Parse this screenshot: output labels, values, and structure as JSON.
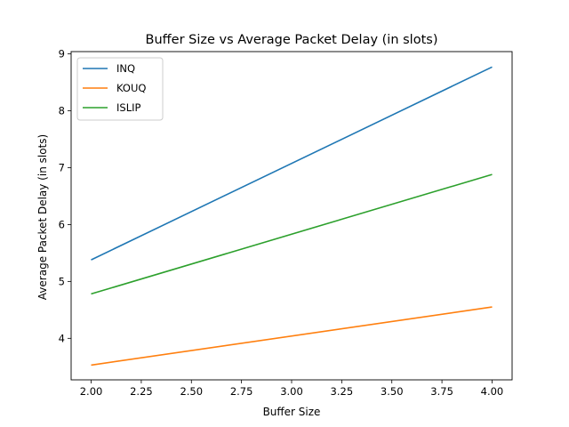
{
  "chart_data": {
    "type": "line",
    "title": "Buffer Size vs Average Packet Delay (in slots)",
    "xlabel": "Buffer Size",
    "ylabel": "Average Packet Delay (in slots)",
    "x": [
      2.0,
      4.0
    ],
    "series": [
      {
        "name": "INQ",
        "values": [
          5.38,
          8.77
        ],
        "color": "#1f77b4"
      },
      {
        "name": "KOUQ",
        "values": [
          3.53,
          4.55
        ],
        "color": "#ff7f0e"
      },
      {
        "name": "ISLIP",
        "values": [
          4.78,
          6.88
        ],
        "color": "#2ca02c"
      }
    ],
    "xlim": [
      1.9,
      4.1
    ],
    "ylim": [
      3.27,
      9.04
    ],
    "x_ticks": [
      2.0,
      2.25,
      2.5,
      2.75,
      3.0,
      3.25,
      3.5,
      3.75,
      4.0
    ],
    "x_tick_labels": [
      "2.00",
      "2.25",
      "2.50",
      "2.75",
      "3.00",
      "3.25",
      "3.50",
      "3.75",
      "4.00"
    ],
    "y_ticks": [
      4,
      5,
      6,
      7,
      8,
      9
    ],
    "y_tick_labels": [
      "4",
      "5",
      "6",
      "7",
      "8",
      "9"
    ],
    "grid": false,
    "legend_position": "upper-left"
  }
}
